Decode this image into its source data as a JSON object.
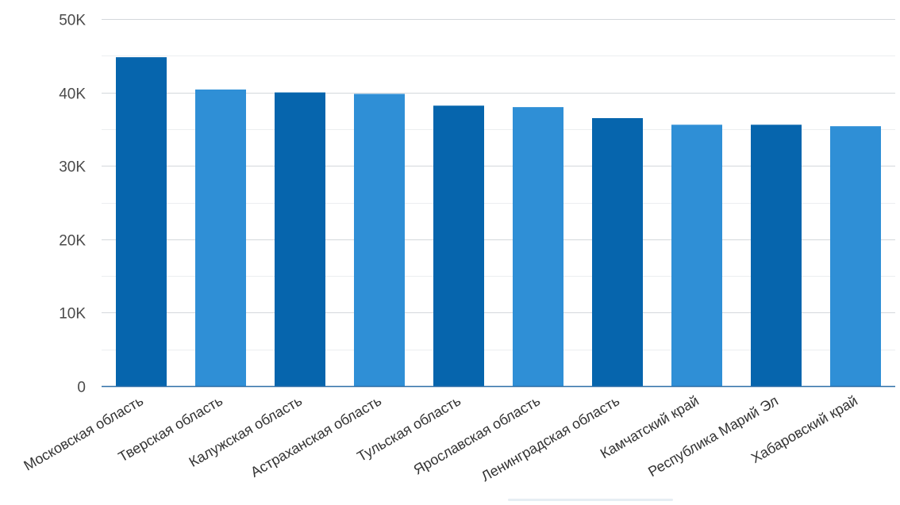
{
  "chart_data": {
    "type": "bar",
    "title": "",
    "xlabel": "",
    "ylabel": "",
    "categories": [
      "Московская область",
      "Тверская область",
      "Калужская область",
      "Астраханская область",
      "Тульская область",
      "Ярославская область",
      "Ленинградская область",
      "Камчатский край",
      "Республика Марий Эл",
      "Хабаровский край"
    ],
    "values": [
      44800,
      40400,
      40000,
      39800,
      38200,
      38000,
      36500,
      35600,
      35600,
      35400
    ],
    "ylim": [
      0,
      50000
    ],
    "yticks": [
      0,
      10000,
      20000,
      30000,
      40000,
      50000
    ],
    "ytick_labels": [
      "0",
      "10K",
      "20K",
      "30K",
      "40K",
      "50K"
    ],
    "grid": true,
    "legend": "none",
    "colors": {
      "dark": "#0665ad",
      "light": "#2f8fd6",
      "grid": "#d4d8dc",
      "minor_grid": "#eceef0",
      "axis": "#2f6fa8"
    }
  }
}
